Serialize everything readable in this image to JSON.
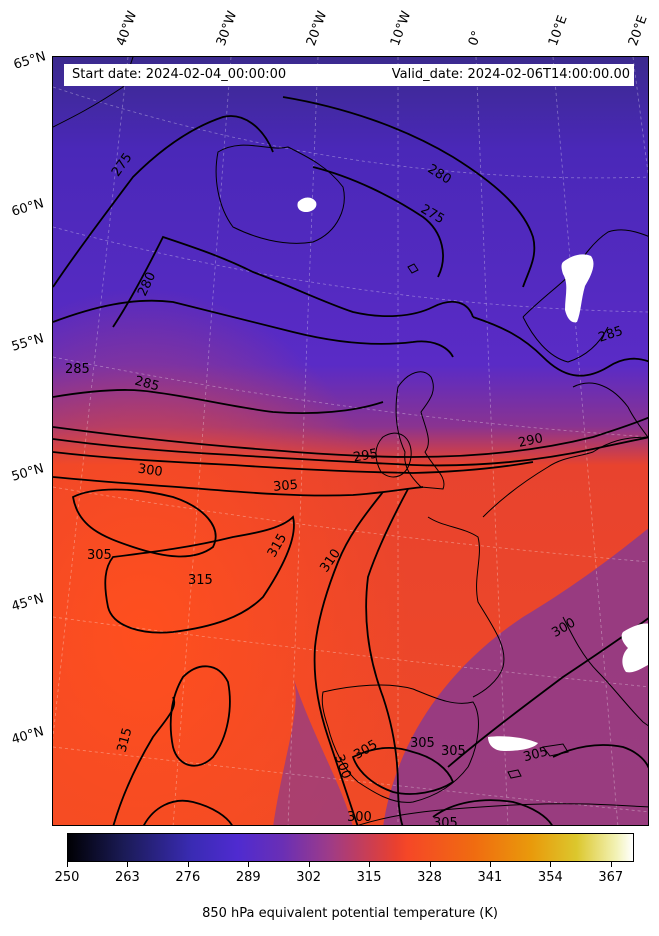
{
  "header": {
    "start_date": "Start date: 2024-02-04_00:00:00",
    "valid_date": "Valid_date: 2024-02-06T14:00:00.00"
  },
  "axes": {
    "lat_labels": [
      "65°N",
      "60°N",
      "55°N",
      "50°N",
      "45°N",
      "40°N"
    ],
    "lon_labels": [
      "40°W",
      "30°W",
      "20°W",
      "10°W",
      "0°",
      "10°E",
      "20°E"
    ]
  },
  "contour_labels": {
    "c275a": "275",
    "c275b": "275",
    "c280a": "280",
    "c280b": "280",
    "c285a": "285",
    "c285b": "285",
    "c285c": "285",
    "c290": "290",
    "c295": "295",
    "c300a": "300",
    "c300b": "300",
    "c300c": "300",
    "c300d": "300",
    "c305a": "305",
    "c305b": "305",
    "c305c": "305",
    "c305d": "305",
    "c305e": "305",
    "c305f": "305",
    "c305g": "305",
    "c310": "310",
    "c315a": "315",
    "c315b": "315",
    "c315c": "315"
  },
  "colorbar": {
    "ticks": [
      "250",
      "263",
      "276",
      "289",
      "302",
      "315",
      "328",
      "341",
      "354",
      "367"
    ],
    "label": "850 hPa equivalent potential temperature (K)",
    "colormap": "CMRmap",
    "min": 250,
    "max": 372
  }
}
